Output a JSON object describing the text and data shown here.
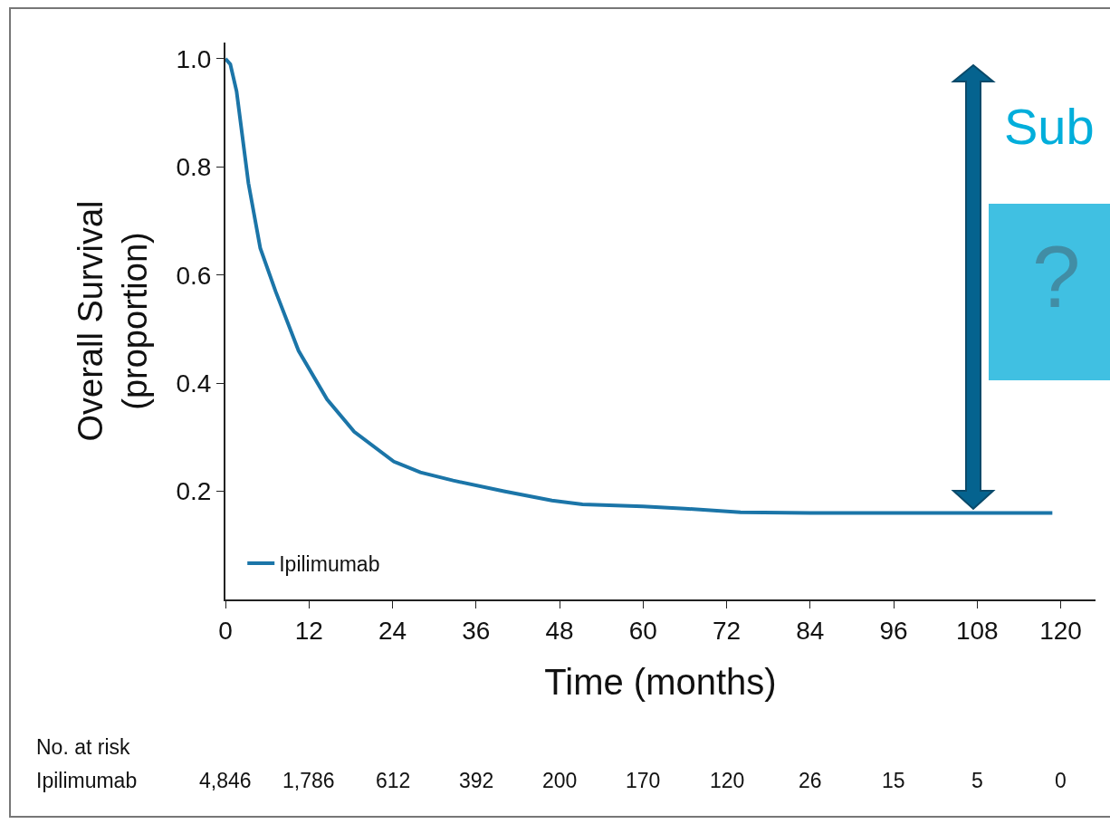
{
  "chart_data": {
    "type": "line",
    "xlabel": "Time (months)",
    "ylabel": "Overall Survival\n(proportion)",
    "xlim": [
      0,
      125
    ],
    "xticks": [
      0,
      12,
      24,
      36,
      48,
      60,
      72,
      84,
      96,
      108,
      120
    ],
    "ylim": [
      0,
      1.03
    ],
    "yticks": [
      0.2,
      0.4,
      0.6,
      0.8,
      {
        "value": 1,
        "label": "1.0"
      }
    ],
    "grid": false,
    "legend": "bottom left",
    "series": [
      {
        "name": "Ipilimumab",
        "color": "#1b75a8",
        "x": [
          0,
          0.7,
          1.6,
          3.3,
          5,
          7.2,
          10.5,
          14.6,
          18.5,
          24.2,
          28,
          32.7,
          40,
          46.9,
          51.3,
          60,
          66,
          74,
          84,
          96,
          108,
          118.8
        ],
        "values": [
          1.0,
          0.99,
          0.94,
          0.77,
          0.65,
          0.57,
          0.46,
          0.37,
          0.31,
          0.255,
          0.235,
          0.22,
          0.2,
          0.183,
          0.176,
          0.172,
          0.168,
          0.161,
          0.16,
          0.16,
          0.16,
          0.16
        ]
      }
    ],
    "annotations": [
      "Sub",
      "?",
      "No. at risk",
      "Ipilimumab",
      "4,846",
      "1,786",
      "612",
      "392",
      "200",
      "170",
      "120",
      "26",
      "15",
      "5",
      "0"
    ]
  }
}
